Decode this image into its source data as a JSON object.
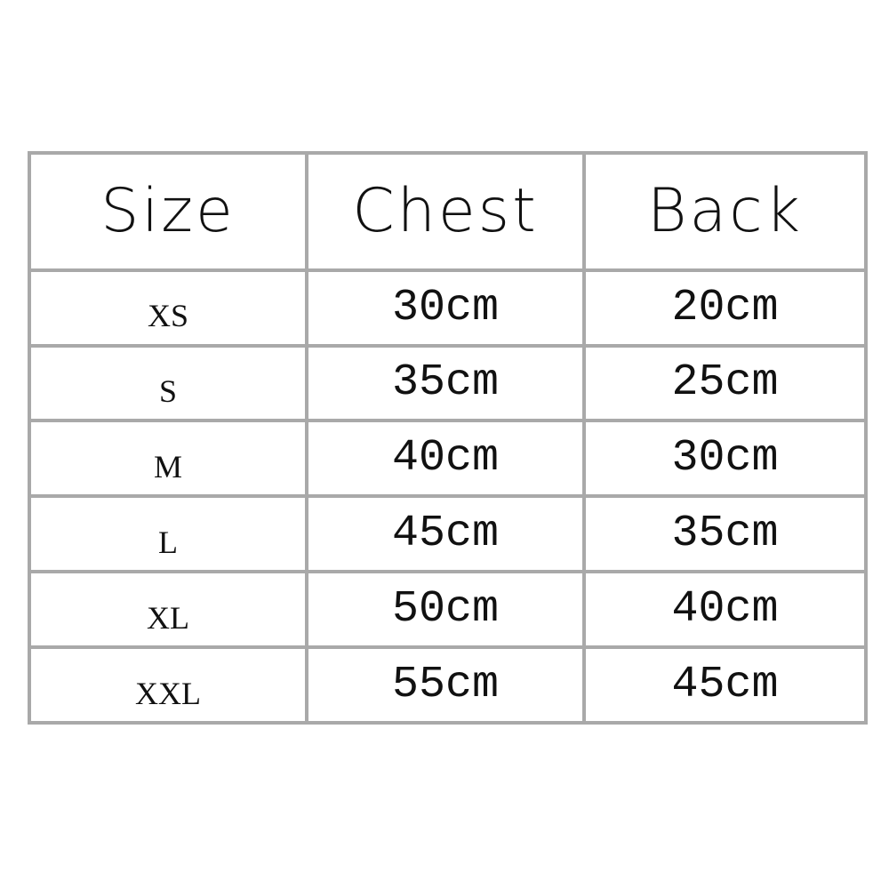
{
  "table": {
    "headers": [
      "Size",
      "Chest",
      "Back"
    ],
    "rows": [
      [
        "XS",
        "30cm",
        "20cm"
      ],
      [
        "S",
        "35cm",
        "25cm"
      ],
      [
        "M",
        "40cm",
        "30cm"
      ],
      [
        "L",
        "45cm",
        "35cm"
      ],
      [
        "XL",
        "50cm",
        "40cm"
      ],
      [
        "XXL",
        "55cm",
        "45cm"
      ]
    ]
  }
}
